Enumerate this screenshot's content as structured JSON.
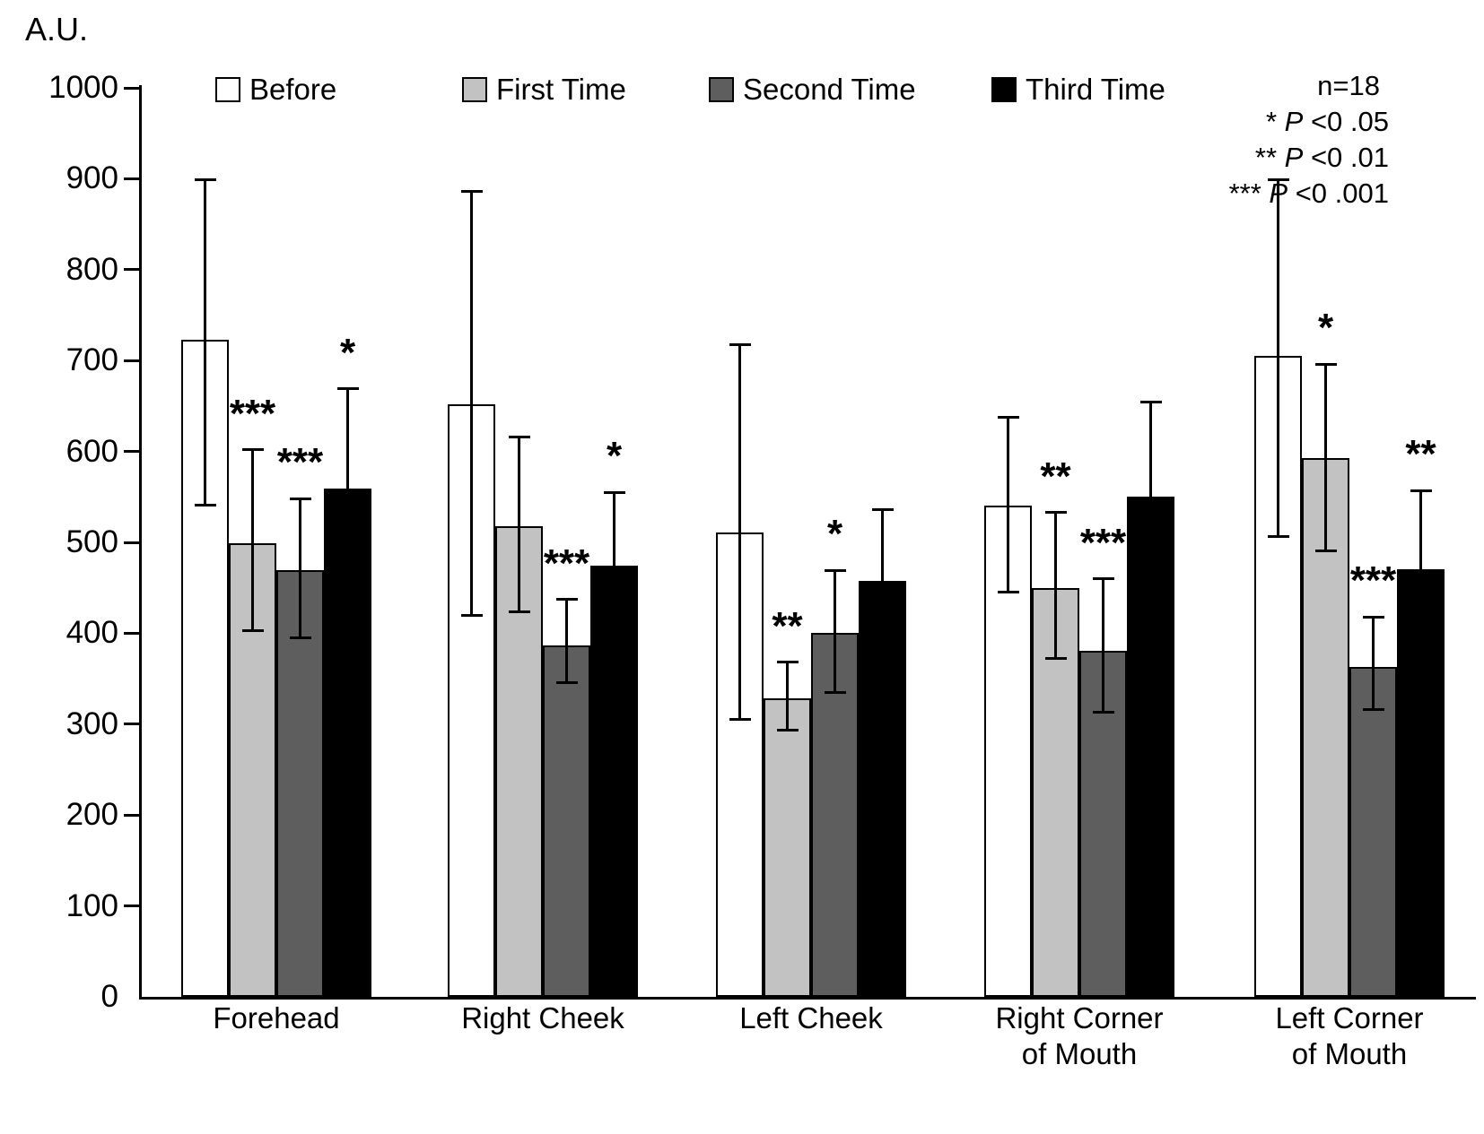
{
  "unit_label": "A.U.",
  "annotations": {
    "n_label": "n=18",
    "p_lines": [
      {
        "stars": "*",
        "p": "P",
        "rest": " <0 .05"
      },
      {
        "stars": "**",
        "p": "P",
        "rest": " <0 .01"
      },
      {
        "stars": "***",
        "p": "P",
        "rest": "  <0 .001"
      }
    ]
  },
  "chart_data": {
    "type": "bar",
    "title": "",
    "ylabel": "A.U.",
    "xlabel": "",
    "ylim": [
      0,
      1000
    ],
    "yticks": [
      0,
      100,
      200,
      300,
      400,
      500,
      600,
      700,
      800,
      900,
      1000
    ],
    "grid": false,
    "legend_position": "top",
    "sample_size": 18,
    "categories": [
      "Forehead",
      "Right Cheek",
      "Left Cheek",
      "Right Corner of Mouth",
      "Left Corner of Mouth"
    ],
    "category_label_lines": [
      [
        "Forehead"
      ],
      [
        "Right Cheek"
      ],
      [
        "Left Cheek"
      ],
      [
        "Right Corner",
        "of Mouth"
      ],
      [
        "Left Corner",
        "of Mouth"
      ]
    ],
    "series": [
      {
        "name": "Before",
        "color": "#ffffff",
        "values": [
          723,
          652,
          511,
          540,
          705
        ],
        "err_lo": [
          541,
          420,
          305,
          445,
          506
        ],
        "err_hi": [
          899,
          886,
          717,
          638,
          899
        ],
        "sig": [
          "",
          "",
          "",
          "",
          ""
        ]
      },
      {
        "name": "First Time",
        "color": "#c2c2c2",
        "values": [
          499,
          518,
          328,
          450,
          593
        ],
        "err_lo": [
          403,
          424,
          293,
          372,
          491
        ],
        "err_hi": [
          602,
          616,
          368,
          533,
          696
        ],
        "sig": [
          "***",
          "",
          "**",
          "**",
          "*"
        ]
      },
      {
        "name": "Second Time",
        "color": "#5e5e5e",
        "values": [
          469,
          387,
          400,
          381,
          363
        ],
        "err_lo": [
          395,
          346,
          335,
          313,
          316
        ],
        "err_hi": [
          548,
          437,
          469,
          460,
          418
        ],
        "sig": [
          "***",
          "***",
          "*",
          "***",
          "***"
        ]
      },
      {
        "name": "Third Time",
        "color": "#000000",
        "values": [
          559,
          474,
          458,
          550,
          470
        ],
        "err_lo": [
          449,
          393,
          380,
          445,
          383
        ],
        "err_hi": [
          669,
          555,
          536,
          654,
          557
        ],
        "sig": [
          "*",
          "*",
          "",
          "",
          "**"
        ]
      }
    ]
  }
}
